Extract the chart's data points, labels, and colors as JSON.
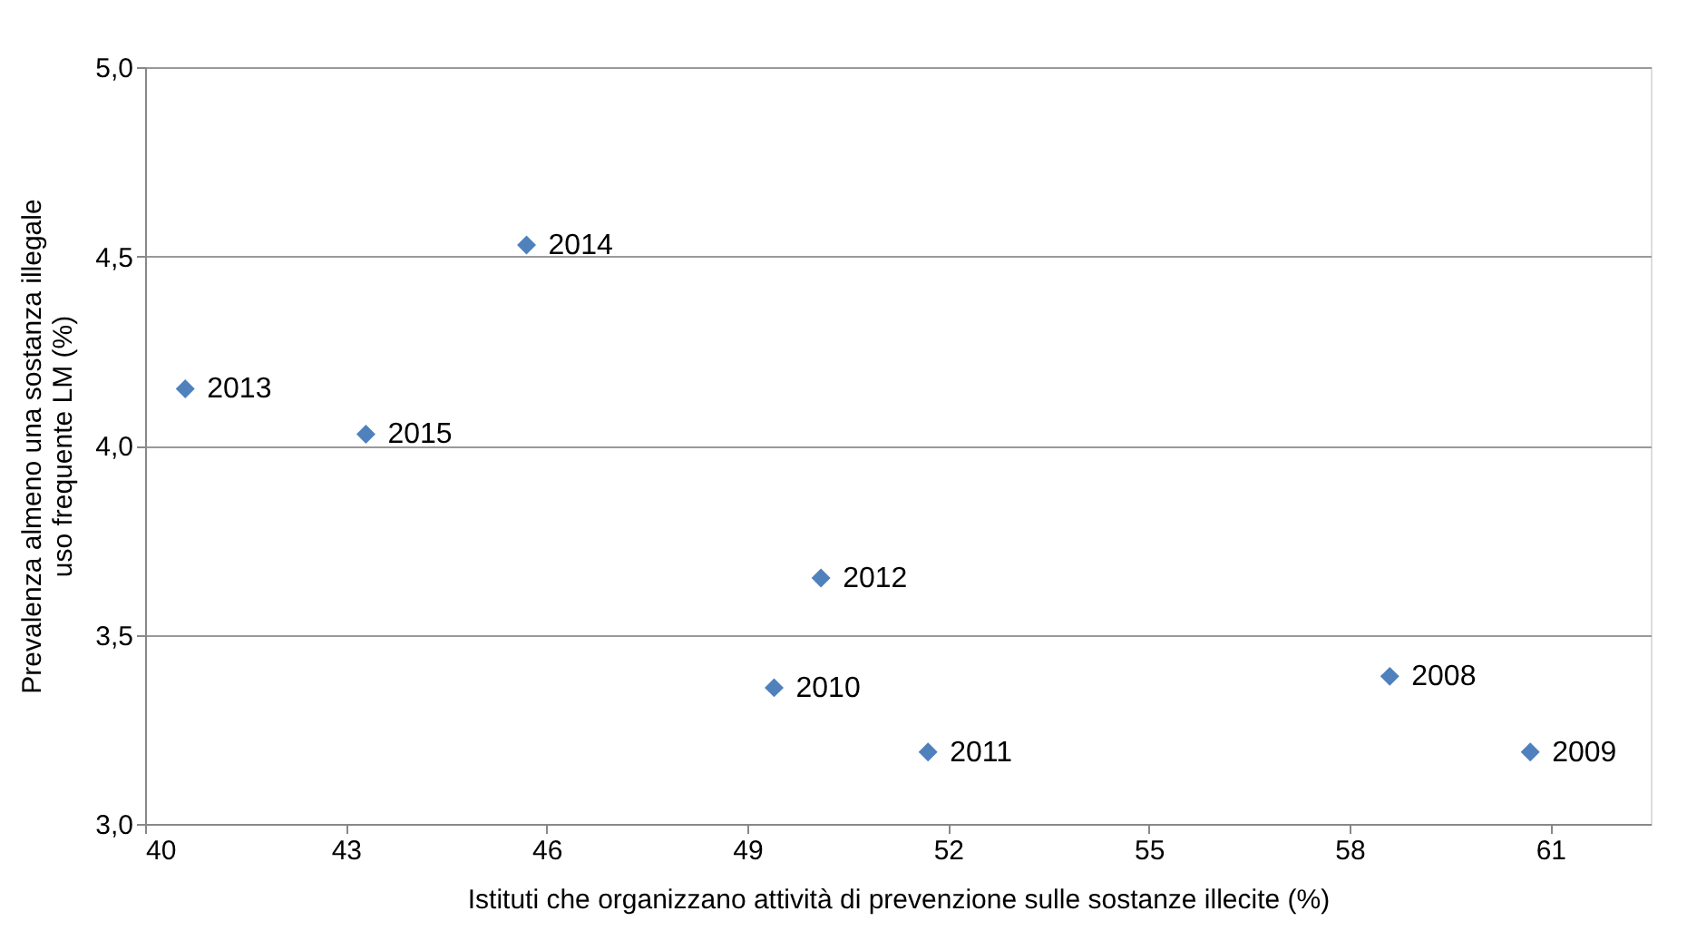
{
  "chart_data": {
    "type": "scatter",
    "xlabel": "Istituti che organizzano attività di prevenzione sulle sostanze illecite (%)",
    "ylabel": "Prevalenza almeno una sostanza illegale\nuso frequente LM (%)",
    "x": [
      58.6,
      60.7,
      49.4,
      51.7,
      50.1,
      40.6,
      45.7,
      43.3
    ],
    "series": [
      {
        "color": "#4f81bd",
        "values": [
          3.39,
          3.19,
          3.36,
          3.19,
          3.65,
          4.15,
          4.53,
          4.03
        ]
      }
    ],
    "annotations": [
      {
        "text": "2008",
        "x": 58.6,
        "y": 3.39
      },
      {
        "text": "2009",
        "x": 60.7,
        "y": 3.19
      },
      {
        "text": "2010",
        "x": 49.4,
        "y": 3.36
      },
      {
        "text": "2011",
        "x": 51.7,
        "y": 3.19
      },
      {
        "text": "2012",
        "x": 50.1,
        "y": 3.65
      },
      {
        "text": "2013",
        "x": 40.6,
        "y": 4.15
      },
      {
        "text": "2014",
        "x": 45.7,
        "y": 4.53
      },
      {
        "text": "2015",
        "x": 43.3,
        "y": 4.03
      }
    ],
    "xlim": [
      40,
      62.5
    ],
    "xticks": [
      40,
      43,
      46,
      49,
      52,
      55,
      58,
      61
    ],
    "ylim": [
      3,
      5
    ],
    "yticks": [
      {
        "value": 3,
        "label": "3,0"
      },
      {
        "value": 3.5,
        "label": "3,5"
      },
      {
        "value": 4,
        "label": "4,0"
      },
      {
        "value": 4.5,
        "label": "4,5"
      },
      {
        "value": 5,
        "label": "5,0"
      }
    ],
    "grid": "y",
    "marker": "diamond"
  }
}
